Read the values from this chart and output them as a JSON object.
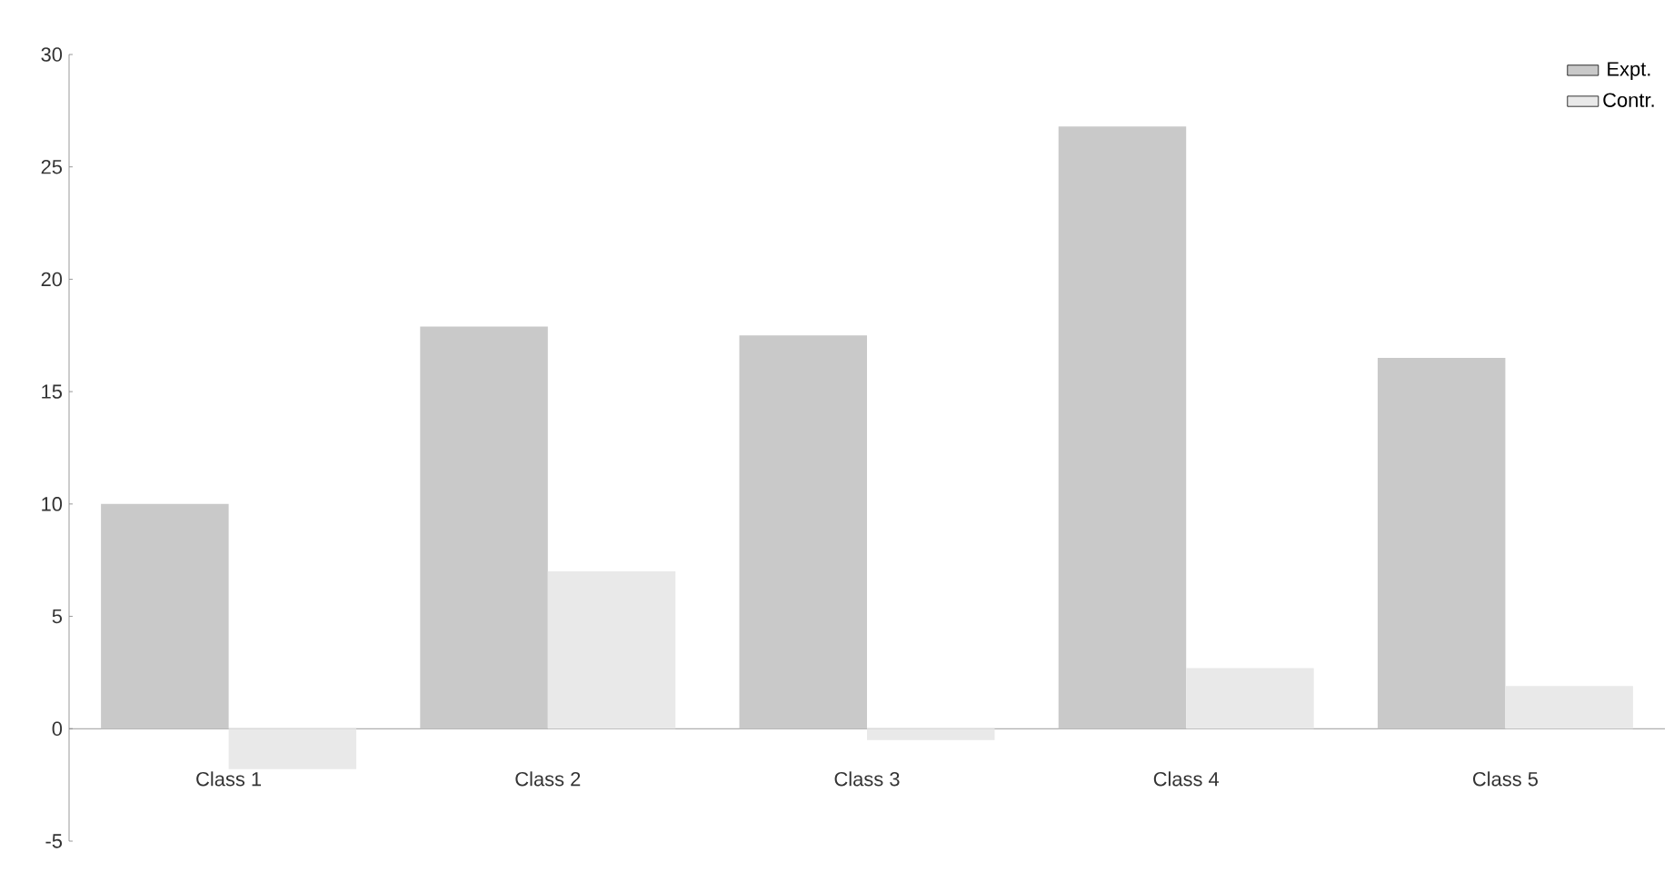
{
  "chart_data": {
    "type": "bar",
    "categories": [
      "Class 1",
      "Class 2",
      "Class 3",
      "Class 4",
      "Class 5"
    ],
    "series": [
      {
        "name": "Expt.",
        "color": "#c9c9c9",
        "values": [
          10,
          17.9,
          17.5,
          26.8,
          16.5
        ]
      },
      {
        "name": "Contr.",
        "color": "#e9e9e9",
        "values": [
          -1.8,
          7,
          -0.5,
          2.7,
          1.9
        ]
      }
    ],
    "ylim": [
      -5,
      30
    ],
    "yticks": [
      -5,
      0,
      5,
      10,
      15,
      20,
      25,
      30
    ],
    "legend": "top right",
    "grid": false
  }
}
